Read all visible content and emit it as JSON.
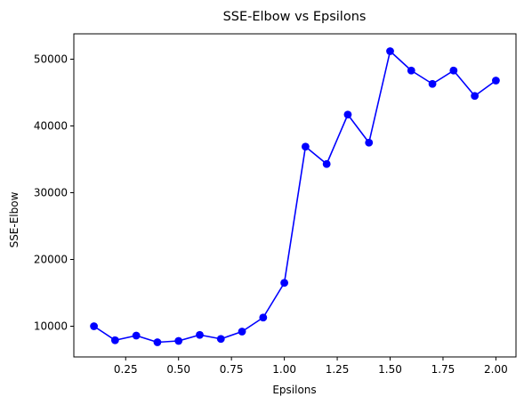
{
  "chart_data": {
    "type": "line",
    "title": "SSE-Elbow vs Epsilons",
    "xlabel": "Epsilons",
    "ylabel": "SSE-Elbow",
    "xlim": [
      0.005,
      2.095
    ],
    "ylim": [
      5400,
      53800
    ],
    "xticks": [
      0.25,
      0.5,
      0.75,
      1.0,
      1.25,
      1.5,
      1.75,
      2.0
    ],
    "xtick_labels": [
      "0.25",
      "0.50",
      "0.75",
      "1.00",
      "1.25",
      "1.50",
      "1.75",
      "2.00"
    ],
    "yticks": [
      10000,
      20000,
      30000,
      40000,
      50000
    ],
    "ytick_labels": [
      "10000",
      "20000",
      "30000",
      "40000",
      "50000"
    ],
    "grid": false,
    "series": [
      {
        "color": "#0000ff",
        "marker": "circle",
        "x": [
          0.1,
          0.2,
          0.3,
          0.4,
          0.5,
          0.6,
          0.7,
          0.8,
          0.9,
          1.0,
          1.1,
          1.2,
          1.3,
          1.4,
          1.5,
          1.6,
          1.7,
          1.8,
          1.9,
          2.0
        ],
        "y": [
          10000,
          7900,
          8600,
          7600,
          7800,
          8700,
          8100,
          9200,
          11300,
          16500,
          36900,
          34300,
          41700,
          37500,
          51200,
          48300,
          46300,
          48300,
          44500,
          46800
        ]
      }
    ]
  }
}
